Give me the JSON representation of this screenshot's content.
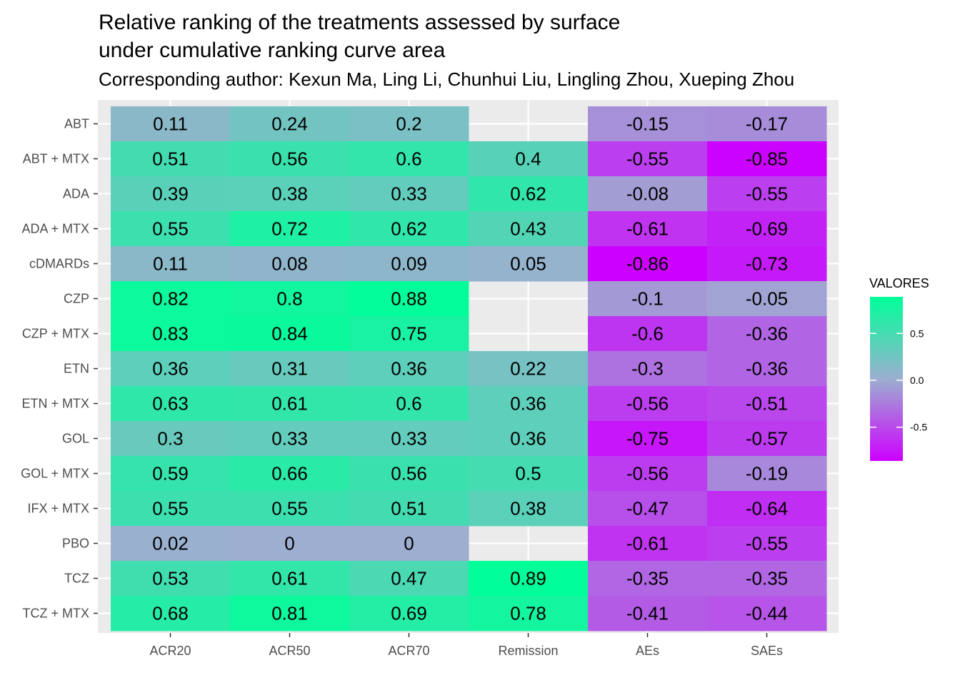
{
  "title": "Relative ranking of the treatments assessed by surface\nunder cumulative ranking curve area",
  "subtitle": "Corresponding author: Kexun Ma, Ling Li, Chunhui Liu, Lingling Zhou, Xueping Zhou",
  "colors": {
    "low": "#cc00ff",
    "mid": "#9eaed0",
    "high": "#00ff99",
    "panel_background": "#ebebeb",
    "grid": "#ffffff"
  },
  "chart_data": {
    "type": "heatmap",
    "x_categories": [
      "ACR20",
      "ACR50",
      "ACR70",
      "Remission",
      "AEs",
      "SAEs"
    ],
    "y_categories": [
      "ABT",
      "ABT + MTX",
      "ADA",
      "ADA + MTX",
      "cDMARDs",
      "CZP",
      "CZP + MTX",
      "ETN",
      "ETN + MTX",
      "GOL",
      "GOL + MTX",
      "IFX + MTX",
      "PBO",
      "TCZ",
      "TCZ + MTX"
    ],
    "values": [
      [
        0.11,
        0.24,
        0.2,
        null,
        -0.15,
        -0.17
      ],
      [
        0.51,
        0.56,
        0.6,
        0.4,
        -0.55,
        -0.85
      ],
      [
        0.39,
        0.38,
        0.33,
        0.62,
        -0.08,
        -0.55
      ],
      [
        0.55,
        0.72,
        0.62,
        0.43,
        -0.61,
        -0.69
      ],
      [
        0.11,
        0.08,
        0.09,
        0.05,
        -0.86,
        -0.73
      ],
      [
        0.82,
        0.8,
        0.88,
        null,
        -0.1,
        -0.05
      ],
      [
        0.83,
        0.84,
        0.75,
        null,
        -0.6,
        -0.36
      ],
      [
        0.36,
        0.31,
        0.36,
        0.22,
        -0.3,
        -0.36
      ],
      [
        0.63,
        0.61,
        0.6,
        0.36,
        -0.56,
        -0.51
      ],
      [
        0.3,
        0.33,
        0.33,
        0.36,
        -0.75,
        -0.57
      ],
      [
        0.59,
        0.66,
        0.56,
        0.5,
        -0.56,
        -0.19
      ],
      [
        0.55,
        0.55,
        0.51,
        0.38,
        -0.47,
        -0.64
      ],
      [
        0.02,
        0,
        0,
        null,
        -0.61,
        -0.55
      ],
      [
        0.53,
        0.61,
        0.47,
        0.89,
        -0.35,
        -0.35
      ],
      [
        0.68,
        0.81,
        0.69,
        0.78,
        -0.41,
        -0.44
      ]
    ],
    "legend": {
      "title": "VALORES",
      "ticks": [
        "0.5",
        "0.0",
        "-0.5"
      ],
      "tick_values": [
        0.5,
        0.0,
        -0.5
      ],
      "range": [
        -0.86,
        0.89
      ],
      "placement": "right"
    }
  }
}
